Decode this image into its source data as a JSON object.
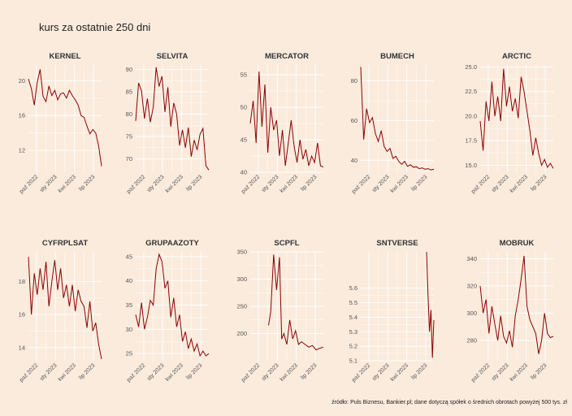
{
  "page": {
    "title": "kurs za ostatnie 250 dni",
    "caption": "źródło: Puls Biznesu, Bankier.pl; dane dotyczą spółek o średnich obrotach powyżej 500 tys. zł"
  },
  "colors": {
    "background": "#fbebdd",
    "grid": "#ffffff",
    "line": "#8b0000"
  },
  "chart_data": [
    {
      "type": "line",
      "title": "KERNEL",
      "ylim": [
        9.5,
        21.8
      ],
      "yticks": [
        12,
        16,
        20
      ],
      "xticks": [
        "paź 2022",
        "sty 2023",
        "kwi 2023",
        "lip 2023"
      ],
      "x": [
        0,
        0.04,
        0.08,
        0.12,
        0.16,
        0.2,
        0.24,
        0.28,
        0.32,
        0.36,
        0.4,
        0.44,
        0.48,
        0.52,
        0.56,
        0.6,
        0.64,
        0.68,
        0.72,
        0.76,
        0.8,
        0.84,
        0.88,
        0.92,
        0.96,
        1
      ],
      "values": [
        20.2,
        19.1,
        17.2,
        19.8,
        21.3,
        18.2,
        17.6,
        19.4,
        18.3,
        18.9,
        17.8,
        18.5,
        18.6,
        18.0,
        18.9,
        18.3,
        17.8,
        17.2,
        16.0,
        15.8,
        14.8,
        13.9,
        14.4,
        14.0,
        12.5,
        10.2
      ]
    },
    {
      "type": "line",
      "title": "SELVITA",
      "ylim": [
        67,
        91
      ],
      "yticks": [
        70,
        75,
        80,
        85,
        90
      ],
      "xticks": [
        "paź 2022",
        "sty 2023",
        "kwi 2023",
        "lip 2023"
      ],
      "x": [
        0,
        0.04,
        0.08,
        0.12,
        0.16,
        0.2,
        0.24,
        0.28,
        0.32,
        0.36,
        0.4,
        0.44,
        0.48,
        0.52,
        0.56,
        0.6,
        0.64,
        0.68,
        0.72,
        0.76,
        0.8,
        0.84,
        0.88,
        0.92,
        0.96,
        1
      ],
      "values": [
        78.5,
        87.0,
        85.2,
        79.0,
        83.5,
        78.2,
        81.5,
        90.5,
        86.2,
        88.5,
        80.5,
        86.0,
        77.2,
        82.5,
        80.0,
        73.0,
        76.5,
        72.5,
        77.0,
        70.5,
        74.2,
        72.0,
        75.5,
        76.8,
        68.5,
        67.5
      ]
    },
    {
      "type": "line",
      "title": "MERCATOR",
      "ylim": [
        40,
        56.5
      ],
      "yticks": [
        40,
        45,
        50,
        55
      ],
      "xticks": [
        "paź 2022",
        "sty 2023",
        "kwi 2023",
        "lip 2023"
      ],
      "x": [
        0,
        0.04,
        0.08,
        0.12,
        0.16,
        0.2,
        0.24,
        0.28,
        0.32,
        0.36,
        0.4,
        0.44,
        0.48,
        0.52,
        0.56,
        0.6,
        0.64,
        0.68,
        0.72,
        0.76,
        0.8,
        0.84,
        0.88,
        0.92,
        0.96,
        1
      ],
      "values": [
        47.5,
        51.0,
        44.5,
        55.5,
        47.0,
        53.5,
        43.0,
        50.0,
        46.5,
        48.0,
        42.5,
        46.5,
        41.0,
        44.5,
        48.0,
        44.0,
        41.5,
        45.0,
        42.0,
        43.5,
        41.0,
        42.5,
        41.5,
        44.5,
        41.0,
        40.8
      ]
    },
    {
      "type": "line",
      "title": "BUMECH",
      "ylim": [
        34,
        88
      ],
      "yticks": [
        40,
        60,
        80
      ],
      "xticks": [
        "paź 2022",
        "sty 2023",
        "kwi 2023",
        "lip 2023"
      ],
      "x": [
        0,
        0.04,
        0.08,
        0.12,
        0.16,
        0.2,
        0.24,
        0.28,
        0.32,
        0.36,
        0.4,
        0.44,
        0.48,
        0.52,
        0.56,
        0.6,
        0.64,
        0.68,
        0.72,
        0.76,
        0.8,
        0.84,
        0.88,
        0.92,
        0.96,
        1
      ],
      "values": [
        87.0,
        50.5,
        66.0,
        59.0,
        61.5,
        53.5,
        49.5,
        55.0,
        47.0,
        44.5,
        46.0,
        41.0,
        42.0,
        39.5,
        38.0,
        39.5,
        37.0,
        37.8,
        36.5,
        36.8,
        35.8,
        36.2,
        35.5,
        35.8,
        35.2,
        35.5
      ]
    },
    {
      "type": "line",
      "title": "ARCTIC",
      "ylim": [
        14.3,
        25.2
      ],
      "yticks": [
        15,
        17.5,
        20,
        22.5,
        25
      ],
      "ytick_labels": [
        "15.0",
        "17.5",
        "20.0",
        "22.5",
        "25.0"
      ],
      "xticks": [
        "paź 2022",
        "sty 2023",
        "kwi 2023",
        "lip 2023"
      ],
      "x": [
        0,
        0.04,
        0.08,
        0.12,
        0.16,
        0.2,
        0.24,
        0.28,
        0.32,
        0.36,
        0.4,
        0.44,
        0.48,
        0.52,
        0.56,
        0.6,
        0.64,
        0.68,
        0.72,
        0.76,
        0.8,
        0.84,
        0.88,
        0.92,
        0.96,
        1
      ],
      "values": [
        19.5,
        16.5,
        21.5,
        19.5,
        23.5,
        20.0,
        22.0,
        19.5,
        24.8,
        21.0,
        23.0,
        20.5,
        21.8,
        19.8,
        24.0,
        22.5,
        20.5,
        18.5,
        16.0,
        17.8,
        16.2,
        15.0,
        15.6,
        14.8,
        15.2,
        14.7
      ]
    },
    {
      "type": "line",
      "title": "CYFRPLSAT",
      "ylim": [
        13.2,
        19.8
      ],
      "yticks": [
        14,
        16,
        18
      ],
      "xticks": [
        "paź 2022",
        "sty 2023",
        "kwi 2023",
        "lip 2023"
      ],
      "x": [
        0,
        0.04,
        0.08,
        0.12,
        0.16,
        0.2,
        0.24,
        0.28,
        0.32,
        0.36,
        0.4,
        0.44,
        0.48,
        0.52,
        0.56,
        0.6,
        0.64,
        0.68,
        0.72,
        0.76,
        0.8,
        0.84,
        0.88,
        0.92,
        0.96,
        1
      ],
      "values": [
        19.5,
        16.0,
        18.5,
        17.2,
        18.8,
        17.5,
        19.2,
        16.5,
        18.0,
        19.3,
        17.5,
        18.8,
        17.0,
        17.8,
        16.5,
        17.8,
        16.2,
        17.5,
        16.8,
        16.5,
        15.2,
        16.8,
        15.0,
        15.5,
        14.2,
        13.3
      ]
    },
    {
      "type": "line",
      "title": "GRUPAAZOTY",
      "ylim": [
        23.5,
        46
      ],
      "yticks": [
        25,
        30,
        35,
        40,
        45
      ],
      "xticks": [
        "paź 2022",
        "sty 2023",
        "kwi 2023",
        "lip 2023"
      ],
      "x": [
        0,
        0.04,
        0.08,
        0.12,
        0.16,
        0.2,
        0.24,
        0.28,
        0.32,
        0.36,
        0.4,
        0.44,
        0.48,
        0.52,
        0.56,
        0.6,
        0.64,
        0.68,
        0.72,
        0.76,
        0.8,
        0.84,
        0.88,
        0.92,
        0.96,
        1
      ],
      "values": [
        33.0,
        30.5,
        35.5,
        30.0,
        32.5,
        36.0,
        35.0,
        42.5,
        45.5,
        44.0,
        38.5,
        40.0,
        32.5,
        36.5,
        30.5,
        33.0,
        27.5,
        29.5,
        26.0,
        28.0,
        25.5,
        27.0,
        24.5,
        25.5,
        24.5,
        25.0
      ]
    },
    {
      "type": "line",
      "title": "SCPFL",
      "ylim": [
        150,
        350
      ],
      "yticks": [
        200,
        250,
        300,
        350
      ],
      "xticks": [
        "paź 2022",
        "sty 2023",
        "kwi 2023",
        "lip 2023"
      ],
      "x": [
        0,
        0.25,
        0.28,
        0.32,
        0.36,
        0.4,
        0.43,
        0.46,
        0.5,
        0.54,
        0.58,
        0.62,
        0.66,
        0.7,
        0.75,
        0.8,
        0.85,
        0.9,
        0.95,
        1
      ],
      "values": [
        null,
        215,
        240,
        345,
        280,
        340,
        190,
        200,
        180,
        225,
        190,
        205,
        180,
        185,
        180,
        175,
        178,
        170,
        173,
        175
      ]
    },
    {
      "type": "line",
      "title": "SNTVERSE",
      "ylim": [
        5.1,
        5.85
      ],
      "yticks": [
        5.1,
        5.2,
        5.3,
        5.4,
        5.5,
        5.6
      ],
      "xticks": [
        "paź 2022",
        "sty 2023",
        "kwi 2023",
        "lip 2023"
      ],
      "x": [
        0.9,
        0.92,
        0.94,
        0.96,
        0.98,
        1
      ],
      "values": [
        5.85,
        5.55,
        5.3,
        5.45,
        5.12,
        5.38
      ]
    },
    {
      "type": "line",
      "title": "MOBRUK",
      "ylim": [
        265,
        345
      ],
      "yticks": [
        280,
        300,
        320,
        340
      ],
      "xticks": [
        "paź 2022",
        "sty 2023",
        "kwi 2023",
        "lip 2023"
      ],
      "x": [
        0,
        0.04,
        0.08,
        0.12,
        0.16,
        0.2,
        0.24,
        0.28,
        0.32,
        0.36,
        0.4,
        0.44,
        0.48,
        0.52,
        0.56,
        0.6,
        0.64,
        0.68,
        0.72,
        0.76,
        0.8,
        0.84,
        0.88,
        0.92,
        0.96,
        1
      ],
      "values": [
        320,
        300,
        310,
        285,
        305,
        292,
        280,
        298,
        283,
        278,
        287,
        275,
        298,
        310,
        325,
        342,
        305,
        295,
        290,
        285,
        270,
        280,
        300,
        285,
        282,
        283
      ]
    }
  ]
}
